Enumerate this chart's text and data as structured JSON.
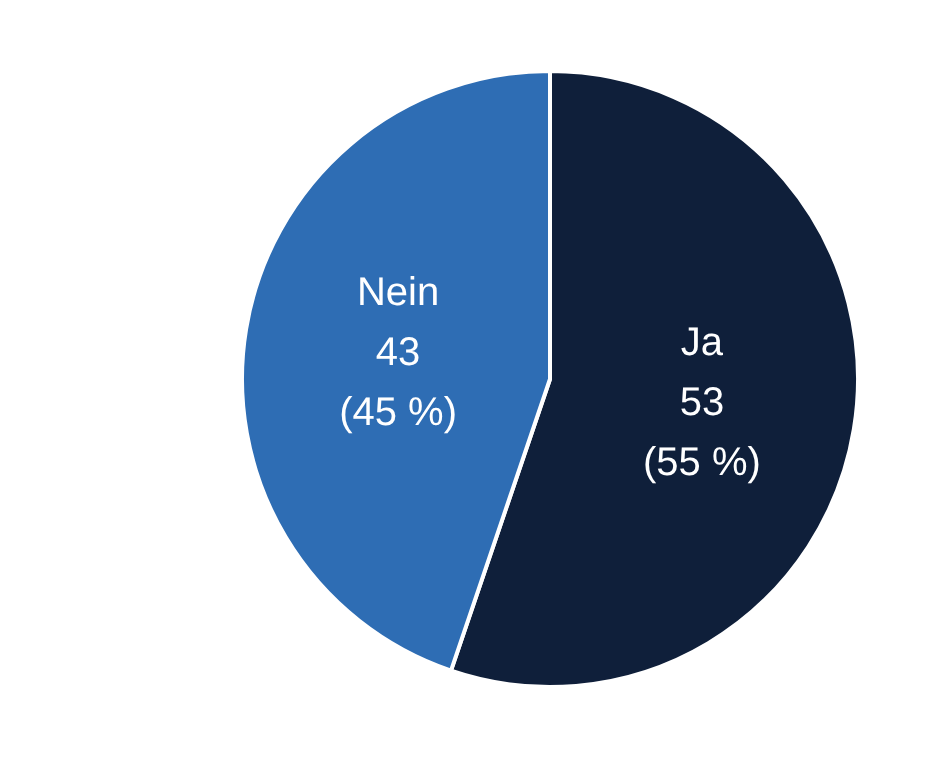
{
  "chart_data": {
    "type": "pie",
    "categories": [
      "Ja",
      "Nein"
    ],
    "values": [
      53,
      43
    ],
    "colors": [
      "#0f1f3a",
      "#2e6db4"
    ],
    "value_labels": [
      "53 (55 %)",
      "43 (45 %)"
    ],
    "legend": false
  }
}
